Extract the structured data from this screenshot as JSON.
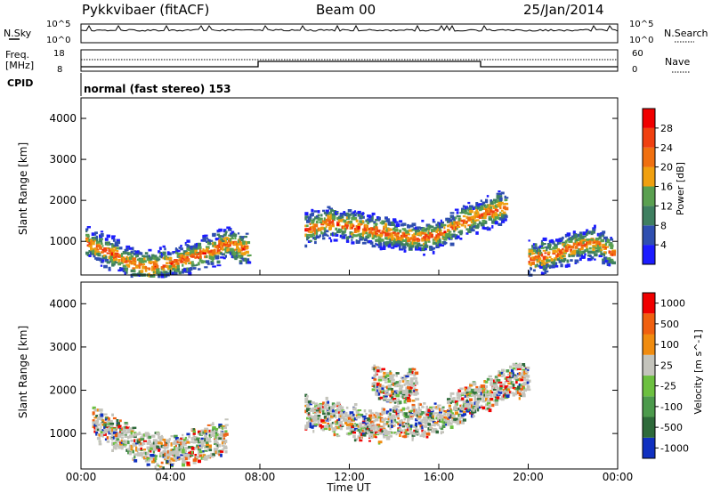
{
  "header": {
    "station": "Pykkvibaer (fitACF)",
    "beam": "Beam 00",
    "date": "25/Jan/2014"
  },
  "noise_panel": {
    "left_label": "N.Sky",
    "right_label": "N.Search",
    "left_ticks": [
      "10^5",
      "10^0"
    ],
    "right_ticks": [
      "10^5",
      "10^0"
    ]
  },
  "freq_panel": {
    "left_label_line1": "Freq.",
    "left_label_line2": "[MHz]",
    "right_label": "Nave",
    "left_ticks": [
      "18",
      "8"
    ],
    "right_ticks": [
      "60",
      "0"
    ]
  },
  "cpid": {
    "label": "CPID",
    "text": "normal (fast stereo) 153"
  },
  "chart_data": [
    {
      "type": "heatmap",
      "title": "",
      "xlabel": "Time UT",
      "ylabel": "Slant Range [km]",
      "x_ticks": [
        "00:00",
        "04:00",
        "08:00",
        "12:00",
        "16:00",
        "20:00",
        "00:00"
      ],
      "xlim": [
        0,
        24
      ],
      "ylim": [
        180,
        4500
      ],
      "y_ticks": [
        "1000",
        "2000",
        "3000",
        "4000"
      ],
      "colorbar": {
        "label": "Power [dB]",
        "ticks": [
          "4",
          "8",
          "12",
          "16",
          "20",
          "24",
          "28"
        ],
        "colors": [
          "#1c1cff",
          "#2f4fb0",
          "#3f7f60",
          "#5aa050",
          "#f0a010",
          "#f07010",
          "#f04010",
          "#f00000"
        ]
      },
      "series": [
        {
          "name": "",
          "x": [
            0.2,
            0.6,
            1.0,
            1.5,
            2.0,
            3.0,
            4.0,
            5.0,
            6.0,
            6.5,
            7.0,
            7.5
          ],
          "y": [
            1000,
            900,
            800,
            700,
            520,
            400,
            500,
            650,
            850,
            1000,
            900,
            800
          ]
        },
        {
          "name": "",
          "x": [
            10.0,
            11.0,
            12.0,
            13.0,
            14.0,
            15.0,
            16.0,
            17.0,
            18.0,
            19.0
          ],
          "y": [
            1300,
            1500,
            1400,
            1300,
            1200,
            1100,
            1200,
            1500,
            1700,
            1900
          ]
        },
        {
          "name": "",
          "x": [
            20.0,
            21.0,
            22.0,
            23.0,
            23.8
          ],
          "y": [
            600,
            700,
            900,
            1000,
            700
          ]
        }
      ]
    },
    {
      "type": "heatmap",
      "title": "",
      "xlabel": "Time UT",
      "ylabel": "Slant Range [km]",
      "x_ticks": [
        "00:00",
        "04:00",
        "08:00",
        "12:00",
        "16:00",
        "20:00",
        "00:00"
      ],
      "xlim": [
        0,
        24
      ],
      "ylim": [
        180,
        4500
      ],
      "y_ticks": [
        "1000",
        "2000",
        "3000",
        "4000"
      ],
      "colorbar": {
        "label": "Velocity [m s^-1]",
        "ticks": [
          "1000",
          "500",
          "100",
          "25",
          "-25",
          "-100",
          "-500",
          "-1000"
        ],
        "colors": [
          "#1030c0",
          "#2e6a3a",
          "#4c9a4c",
          "#6cc040",
          "#c4c4bc",
          "#f08c10",
          "#f06010",
          "#f00000"
        ]
      },
      "series": [
        {
          "name": "",
          "x": [
            0.5,
            2.0,
            3.5,
            5.0,
            6.5
          ],
          "y": [
            1300,
            900,
            600,
            700,
            950
          ]
        },
        {
          "name": "",
          "x": [
            10.0,
            11.0,
            12.0,
            13.0,
            14.0,
            15.0,
            16.0,
            17.0,
            18.0,
            19.0,
            20.0
          ],
          "y": [
            1500,
            1400,
            1300,
            1200,
            1300,
            1300,
            1400,
            1700,
            1900,
            2200,
            2300
          ]
        },
        {
          "name": "",
          "x": [
            13.0,
            14.0,
            15.0
          ],
          "y": [
            2300,
            2000,
            2200
          ]
        }
      ]
    }
  ]
}
